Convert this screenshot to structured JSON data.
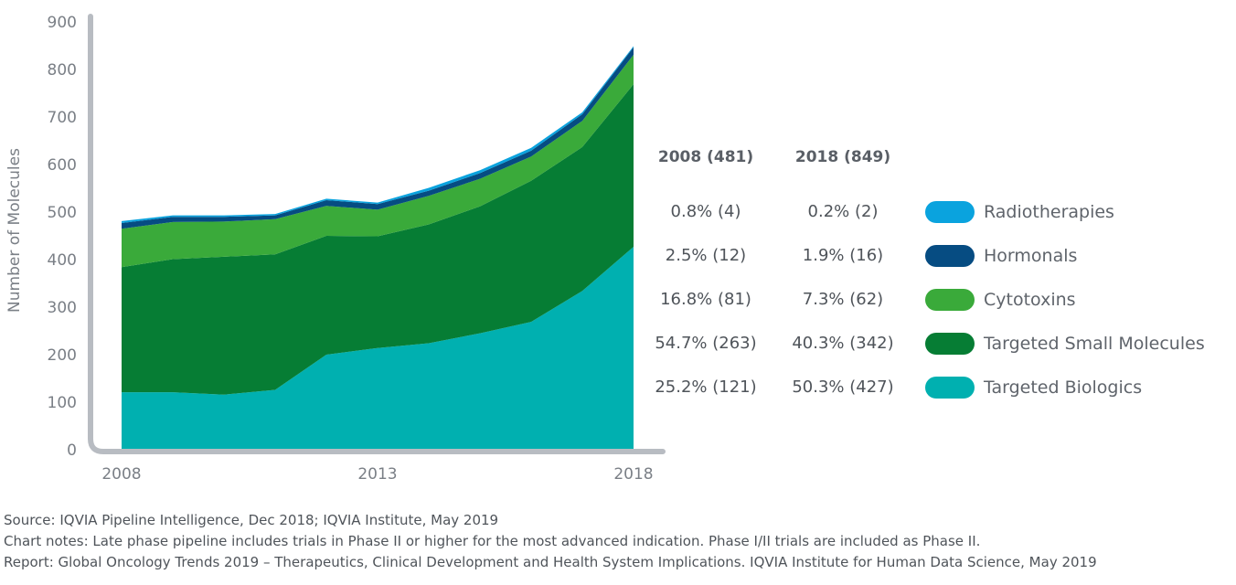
{
  "chart_data": {
    "type": "area",
    "stacked": true,
    "ylabel": "Number of Molecules",
    "ylim": [
      0,
      900
    ],
    "yticks": [
      0,
      100,
      200,
      300,
      400,
      500,
      600,
      700,
      800,
      900
    ],
    "x": [
      2008,
      2009,
      2010,
      2011,
      2012,
      2013,
      2014,
      2015,
      2016,
      2017,
      2018
    ],
    "xticks": [
      "2008",
      "2013",
      "2018"
    ],
    "series": [
      {
        "name": "Targeted Biologics",
        "color": "#00b0b0",
        "values": [
          121,
          121,
          116,
          126,
          200,
          214,
          224,
          245,
          269,
          334,
          427
        ]
      },
      {
        "name": "Targeted Small Molecules",
        "color": "#067d34",
        "values": [
          263,
          280,
          290,
          285,
          250,
          235,
          250,
          267,
          297,
          303,
          342
        ]
      },
      {
        "name": "Cytotoxins",
        "color": "#3aaa3a",
        "values": [
          81,
          78,
          74,
          74,
          63,
          56,
          60,
          58,
          51,
          55,
          62
        ]
      },
      {
        "name": "Hormonals",
        "color": "#064c82",
        "values": [
          12,
          11,
          10,
          8,
          12,
          12,
          11,
          12,
          12,
          14,
          16
        ]
      },
      {
        "name": "Radiotherapies",
        "color": "#0aa3de",
        "values": [
          4,
          3,
          3,
          3,
          3,
          3,
          6,
          6,
          6,
          4,
          2
        ]
      }
    ]
  },
  "table": {
    "headers": [
      "2008 (481)",
      "2018 (849)"
    ],
    "rows": [
      {
        "col2008": "0.8% (4)",
        "col2018": "0.2% (2)",
        "legend": "Radiotherapies",
        "color": "#0aa3de"
      },
      {
        "col2008": "2.5% (12)",
        "col2018": "1.9% (16)",
        "legend": "Hormonals",
        "color": "#064c82"
      },
      {
        "col2008": "16.8% (81)",
        "col2018": "7.3% (62)",
        "legend": "Cytotoxins",
        "color": "#3aaa3a"
      },
      {
        "col2008": "54.7% (263)",
        "col2018": "40.3% (342)",
        "legend": "Targeted Small Molecules",
        "color": "#067d34"
      },
      {
        "col2008": "25.2% (121)",
        "col2018": "50.3% (427)",
        "legend": "Targeted Biologics",
        "color": "#00b0b0"
      }
    ]
  },
  "notes": {
    "source": "Source: IQVIA Pipeline Intelligence, Dec 2018; IQVIA Institute, May 2019",
    "chart_notes": "Chart notes: Late phase pipeline includes trials in Phase II or higher for the most advanced indication. Phase I/II trials are included as Phase II.",
    "report": "Report: Global Oncology Trends 2019 – Therapeutics, Clinical Development and Health System Implications. IQVIA Institute for Human Data Science, May 2019"
  }
}
